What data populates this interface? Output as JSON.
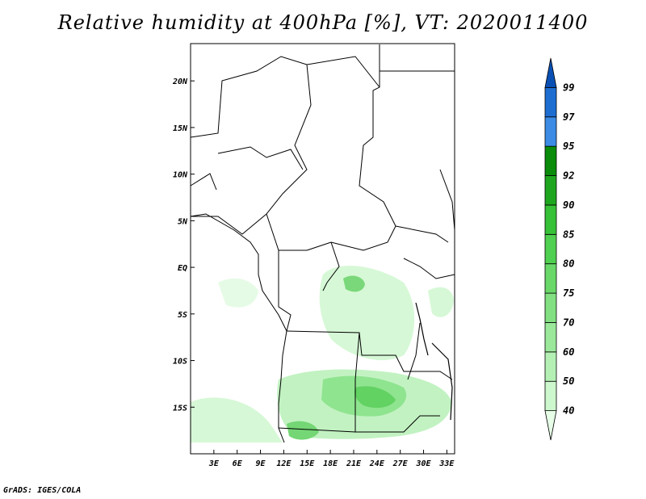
{
  "title": "Relative humidity at 400hPa [%], VT: 2020011400",
  "footer": "GrADS: IGES/COLA",
  "map": {
    "lon_range": [
      0,
      34
    ],
    "lat_range": [
      -20,
      24
    ],
    "lon_ticks": [
      {
        "value": 3,
        "label": "3E"
      },
      {
        "value": 6,
        "label": "6E"
      },
      {
        "value": 9,
        "label": "9E"
      },
      {
        "value": 12,
        "label": "12E"
      },
      {
        "value": 15,
        "label": "15E"
      },
      {
        "value": 18,
        "label": "18E"
      },
      {
        "value": 21,
        "label": "21E"
      },
      {
        "value": 24,
        "label": "24E"
      },
      {
        "value": 27,
        "label": "27E"
      },
      {
        "value": 30,
        "label": "30E"
      },
      {
        "value": 33,
        "label": "33E"
      }
    ],
    "lat_ticks": [
      {
        "value": 20,
        "label": "20N"
      },
      {
        "value": 15,
        "label": "15N"
      },
      {
        "value": 10,
        "label": "10N"
      },
      {
        "value": 5,
        "label": "5N"
      },
      {
        "value": 0,
        "label": "EQ"
      },
      {
        "value": -5,
        "label": "5S"
      },
      {
        "value": -10,
        "label": "10S"
      },
      {
        "value": -15,
        "label": "15S"
      }
    ]
  },
  "colorbar": {
    "levels": [
      "40",
      "50",
      "60",
      "70",
      "75",
      "80",
      "85",
      "90",
      "92",
      "95",
      "97",
      "99"
    ],
    "colors": [
      "#e6ffe6",
      "#cdf7cd",
      "#b4f0b4",
      "#9be89b",
      "#82e082",
      "#69d869",
      "#50d050",
      "#37c137",
      "#1ea71e",
      "#0a8c0a",
      "#3c8ce6",
      "#1e6ed2",
      "#0a50b4"
    ]
  }
}
